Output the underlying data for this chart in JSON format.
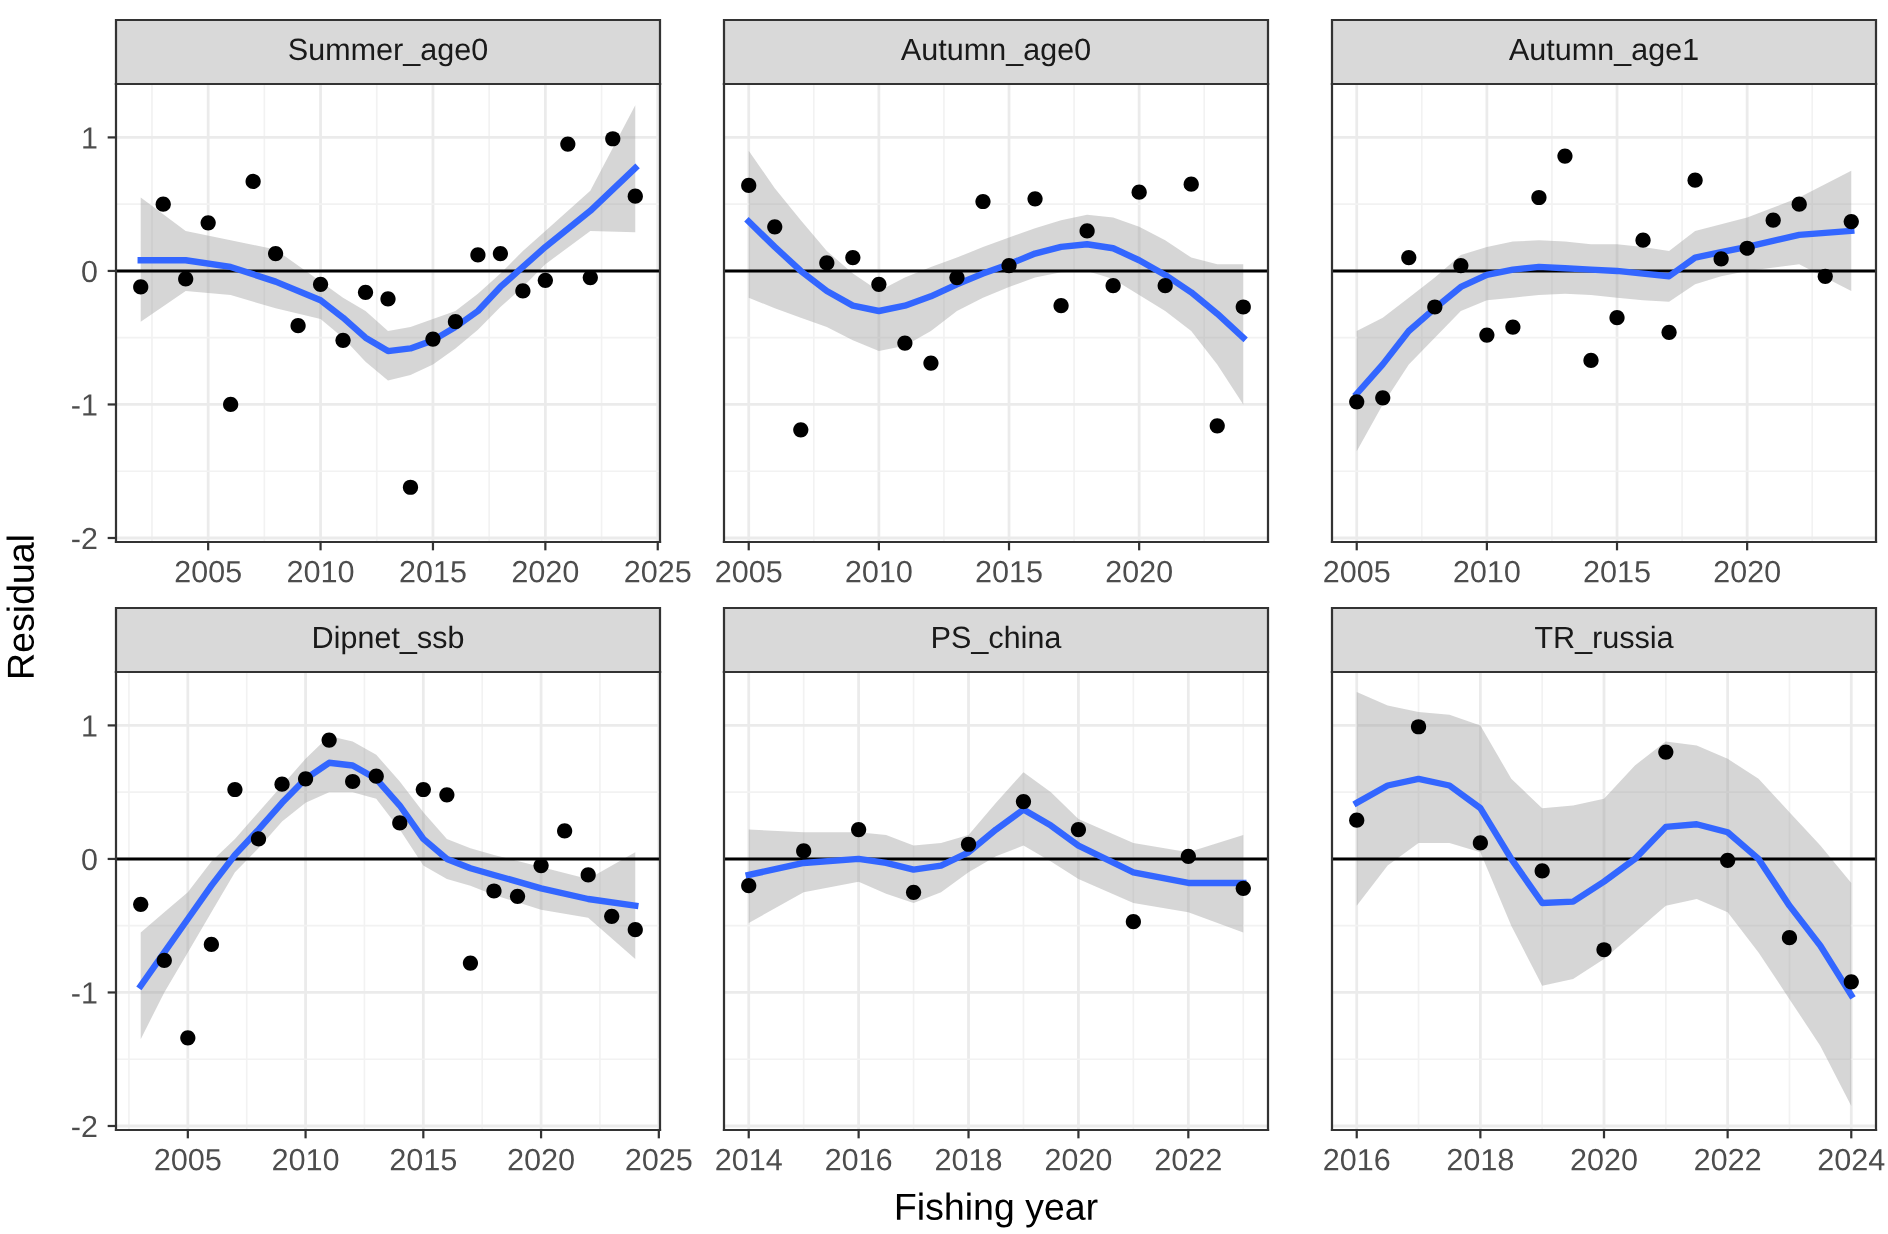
{
  "chart_data": [
    {
      "type": "scatter",
      "title": "Summer_age0",
      "ylabel": "Residual",
      "xlim": [
        2000.9,
        2025.1
      ],
      "xticks": [
        2005,
        2010,
        2015,
        2020,
        2025
      ],
      "ylim": [
        -2.03,
        1.4
      ],
      "yticks": [
        -2,
        -1,
        0,
        1
      ],
      "grid": true,
      "ref_lines": [
        {
          "axis": "y",
          "value": 0,
          "color": "#000000"
        }
      ],
      "series": [
        {
          "color": "#000000",
          "marker": "circle",
          "x": [
            2002,
            2003,
            2004,
            2005,
            2006,
            2007,
            2008,
            2009,
            2010,
            2011,
            2012,
            2013,
            2014,
            2015,
            2016,
            2017,
            2018,
            2019,
            2020,
            2021,
            2022,
            2023,
            2024
          ],
          "values": [
            -0.12,
            0.5,
            -0.06,
            0.36,
            -1.0,
            0.67,
            0.13,
            -0.41,
            -0.1,
            -0.52,
            -0.16,
            -0.21,
            -1.62,
            -0.51,
            -0.38,
            0.12,
            0.13,
            -0.15,
            -0.07,
            0.95,
            -0.05,
            0.99,
            0.56
          ]
        },
        {
          "type": "line",
          "color": "#3366ff",
          "x": [
            2002,
            2004,
            2006,
            2008,
            2010,
            2011,
            2012,
            2013,
            2014,
            2015,
            2016,
            2017,
            2018,
            2019,
            2020,
            2022,
            2024
          ],
          "values": [
            0.08,
            0.08,
            0.03,
            -0.08,
            -0.22,
            -0.35,
            -0.5,
            -0.6,
            -0.58,
            -0.52,
            -0.42,
            -0.3,
            -0.12,
            0.03,
            0.18,
            0.45,
            0.77
          ],
          "lower": [
            -0.38,
            -0.15,
            -0.18,
            -0.28,
            -0.36,
            -0.5,
            -0.68,
            -0.82,
            -0.78,
            -0.7,
            -0.58,
            -0.44,
            -0.27,
            -0.12,
            0.05,
            0.3,
            0.29
          ],
          "upper": [
            0.55,
            0.3,
            0.23,
            0.16,
            -0.08,
            -0.2,
            -0.3,
            -0.45,
            -0.42,
            -0.36,
            -0.3,
            -0.17,
            -0.02,
            0.15,
            0.3,
            0.6,
            1.24
          ]
        }
      ]
    },
    {
      "type": "scatter",
      "title": "Autumn_age0",
      "xlim": [
        2004.05,
        2024.95
      ],
      "xticks": [
        2005,
        2010,
        2015,
        2020
      ],
      "ylim": [
        -2.03,
        1.4
      ],
      "yticks": [
        -2,
        -1,
        0,
        1
      ],
      "grid": true,
      "tick_labels": "x",
      "ref_lines": [
        {
          "axis": "y",
          "value": 0,
          "color": "#000000"
        }
      ],
      "series": [
        {
          "color": "#000000",
          "marker": "circle",
          "x": [
            2005,
            2006,
            2007,
            2008,
            2009,
            2010,
            2011,
            2012,
            2013,
            2014,
            2015,
            2016,
            2017,
            2018,
            2019,
            2020,
            2021,
            2022,
            2023,
            2024
          ],
          "values": [
            0.64,
            0.33,
            -1.19,
            0.06,
            0.1,
            -0.1,
            -0.54,
            -0.69,
            -0.05,
            0.52,
            0.04,
            0.54,
            -0.26,
            0.3,
            -0.11,
            0.59,
            -0.11,
            0.65,
            -1.16,
            -0.27
          ]
        },
        {
          "type": "line",
          "color": "#3366ff",
          "x": [
            2005,
            2006,
            2007,
            2008,
            2009,
            2010,
            2011,
            2012,
            2013,
            2014,
            2015,
            2016,
            2017,
            2018,
            2019,
            2020,
            2021,
            2022,
            2023,
            2024
          ],
          "values": [
            0.37,
            0.18,
            0.0,
            -0.15,
            -0.26,
            -0.3,
            -0.26,
            -0.19,
            -0.1,
            -0.02,
            0.05,
            0.13,
            0.18,
            0.2,
            0.17,
            0.08,
            -0.03,
            -0.16,
            -0.32,
            -0.5
          ],
          "lower": [
            -0.2,
            -0.28,
            -0.35,
            -0.42,
            -0.52,
            -0.6,
            -0.56,
            -0.45,
            -0.3,
            -0.2,
            -0.12,
            -0.05,
            -0.01,
            0.0,
            -0.06,
            -0.18,
            -0.3,
            -0.45,
            -0.7,
            -1.0
          ],
          "upper": [
            0.9,
            0.62,
            0.38,
            0.15,
            -0.02,
            -0.15,
            -0.05,
            0.03,
            0.1,
            0.18,
            0.25,
            0.32,
            0.38,
            0.42,
            0.4,
            0.33,
            0.23,
            0.1,
            0.05,
            0.05
          ]
        }
      ]
    },
    {
      "type": "scatter",
      "title": "Autumn_age1",
      "xlim": [
        2004.05,
        2024.95
      ],
      "xticks": [
        2005,
        2010,
        2015,
        2020
      ],
      "ylim": [
        -2.03,
        1.4
      ],
      "yticks": [
        -2,
        -1,
        0,
        1
      ],
      "grid": true,
      "tick_labels": "x",
      "ref_lines": [
        {
          "axis": "y",
          "value": 0,
          "color": "#000000"
        }
      ],
      "series": [
        {
          "color": "#000000",
          "marker": "circle",
          "x": [
            2005,
            2006,
            2007,
            2008,
            2009,
            2010,
            2011,
            2012,
            2013,
            2014,
            2015,
            2016,
            2017,
            2018,
            2019,
            2020,
            2021,
            2022,
            2023,
            2024
          ],
          "values": [
            -0.98,
            -0.95,
            0.1,
            -0.27,
            0.04,
            -0.48,
            -0.42,
            0.55,
            0.86,
            -0.67,
            -0.35,
            0.23,
            -0.46,
            0.68,
            0.09,
            0.17,
            0.38,
            0.5,
            -0.04,
            0.37
          ]
        },
        {
          "type": "line",
          "color": "#3366ff",
          "x": [
            2005,
            2006,
            2007,
            2008,
            2009,
            2010,
            2011,
            2012,
            2013,
            2014,
            2015,
            2016,
            2017,
            2018,
            2019,
            2020,
            2022,
            2024
          ],
          "values": [
            -0.92,
            -0.7,
            -0.45,
            -0.28,
            -0.12,
            -0.03,
            0.01,
            0.03,
            0.02,
            0.01,
            0.0,
            -0.02,
            -0.04,
            0.1,
            0.14,
            0.18,
            0.27,
            0.3
          ],
          "lower": [
            -1.35,
            -1.0,
            -0.7,
            -0.5,
            -0.3,
            -0.22,
            -0.2,
            -0.18,
            -0.17,
            -0.18,
            -0.2,
            -0.22,
            -0.23,
            -0.1,
            -0.04,
            0.0,
            0.05,
            -0.15
          ],
          "upper": [
            -0.45,
            -0.35,
            -0.2,
            -0.05,
            0.12,
            0.18,
            0.22,
            0.23,
            0.22,
            0.2,
            0.2,
            0.18,
            0.15,
            0.3,
            0.35,
            0.4,
            0.55,
            0.75
          ]
        }
      ]
    },
    {
      "type": "scatter",
      "title": "Dipnet_ssb",
      "xlim": [
        2001.95,
        2025.05
      ],
      "xticks": [
        2005,
        2010,
        2015,
        2020,
        2025
      ],
      "ylim": [
        -2.03,
        1.4
      ],
      "yticks": [
        -2,
        -1,
        0,
        1
      ],
      "grid": true,
      "ref_lines": [
        {
          "axis": "y",
          "value": 0,
          "color": "#000000"
        }
      ],
      "series": [
        {
          "color": "#000000",
          "marker": "circle",
          "x": [
            2003,
            2004,
            2005,
            2006,
            2007,
            2008,
            2009,
            2010,
            2011,
            2012,
            2013,
            2014,
            2015,
            2016,
            2017,
            2018,
            2019,
            2020,
            2021,
            2022,
            2023,
            2024
          ],
          "values": [
            -0.34,
            -0.76,
            -1.34,
            -0.64,
            0.52,
            0.15,
            0.56,
            0.6,
            0.89,
            0.58,
            0.62,
            0.27,
            0.52,
            0.48,
            -0.78,
            -0.24,
            -0.28,
            -0.05,
            0.21,
            -0.12,
            -0.43,
            -0.53
          ]
        },
        {
          "type": "line",
          "color": "#3366ff",
          "x": [
            2003,
            2004,
            2005,
            2006,
            2007,
            2008,
            2009,
            2010,
            2011,
            2012,
            2013,
            2014,
            2015,
            2016,
            2017,
            2018,
            2020,
            2022,
            2024
          ],
          "values": [
            -0.95,
            -0.7,
            -0.45,
            -0.2,
            0.03,
            0.22,
            0.42,
            0.6,
            0.72,
            0.7,
            0.6,
            0.4,
            0.15,
            0.0,
            -0.07,
            -0.12,
            -0.22,
            -0.3,
            -0.35
          ],
          "lower": [
            -1.35,
            -1.0,
            -0.7,
            -0.4,
            -0.1,
            0.08,
            0.28,
            0.42,
            0.5,
            0.5,
            0.45,
            0.22,
            -0.05,
            -0.15,
            -0.2,
            -0.27,
            -0.38,
            -0.44,
            -0.75
          ],
          "upper": [
            -0.55,
            -0.4,
            -0.25,
            -0.02,
            0.15,
            0.35,
            0.55,
            0.75,
            0.92,
            0.88,
            0.78,
            0.58,
            0.35,
            0.15,
            0.08,
            0.03,
            -0.06,
            -0.15,
            0.05
          ]
        }
      ]
    },
    {
      "type": "scatter",
      "title": "PS_china",
      "xlabel": "Fishing year",
      "xlim": [
        2013.55,
        2023.45
      ],
      "xticks": [
        2014,
        2016,
        2018,
        2020,
        2022
      ],
      "ylim": [
        -2.03,
        1.4
      ],
      "yticks": [
        -2,
        -1,
        0,
        1
      ],
      "grid": true,
      "tick_labels": "x",
      "ref_lines": [
        {
          "axis": "y",
          "value": 0,
          "color": "#000000"
        }
      ],
      "series": [
        {
          "color": "#000000",
          "marker": "circle",
          "x": [
            2014,
            2015,
            2016,
            2017,
            2018,
            2019,
            2020,
            2021,
            2022,
            2023
          ],
          "values": [
            -0.2,
            0.06,
            0.22,
            -0.25,
            0.11,
            0.43,
            0.22,
            -0.47,
            0.02,
            -0.22
          ]
        },
        {
          "type": "line",
          "color": "#3366ff",
          "x": [
            2014,
            2015,
            2016,
            2016.5,
            2017,
            2017.5,
            2018,
            2018.5,
            2019,
            2019.5,
            2020,
            2021,
            2022,
            2023
          ],
          "values": [
            -0.12,
            -0.03,
            0.0,
            -0.03,
            -0.08,
            -0.05,
            0.05,
            0.22,
            0.37,
            0.25,
            0.1,
            -0.1,
            -0.18,
            -0.18
          ],
          "lower": [
            -0.48,
            -0.25,
            -0.17,
            -0.26,
            -0.33,
            -0.25,
            -0.1,
            0.02,
            0.1,
            -0.02,
            -0.15,
            -0.33,
            -0.4,
            -0.55
          ],
          "upper": [
            0.22,
            0.2,
            0.2,
            0.18,
            0.1,
            0.12,
            0.18,
            0.42,
            0.65,
            0.5,
            0.3,
            0.12,
            0.05,
            0.18
          ]
        }
      ]
    },
    {
      "type": "scatter",
      "title": "TR_russia",
      "xlim": [
        2015.6,
        2024.4
      ],
      "xticks": [
        2016,
        2018,
        2020,
        2022,
        2024
      ],
      "ylim": [
        -2.03,
        1.4
      ],
      "yticks": [
        -2,
        -1,
        0,
        1
      ],
      "grid": true,
      "tick_labels": "x",
      "ref_lines": [
        {
          "axis": "y",
          "value": 0,
          "color": "#000000"
        }
      ],
      "series": [
        {
          "color": "#000000",
          "marker": "circle",
          "x": [
            2016,
            2017,
            2018,
            2019,
            2020,
            2021,
            2022,
            2023,
            2024
          ],
          "values": [
            0.29,
            0.99,
            0.12,
            -0.09,
            -0.68,
            0.8,
            -0.01,
            -0.59,
            -0.92
          ]
        },
        {
          "type": "line",
          "color": "#3366ff",
          "x": [
            2016,
            2016.5,
            2017,
            2017.5,
            2018,
            2018.5,
            2019,
            2019.5,
            2020,
            2020.5,
            2021,
            2021.5,
            2022,
            2022.5,
            2023,
            2023.5,
            2024
          ],
          "values": [
            0.42,
            0.55,
            0.6,
            0.55,
            0.38,
            0.0,
            -0.33,
            -0.32,
            -0.17,
            0.0,
            0.24,
            0.26,
            0.2,
            0.0,
            -0.35,
            -0.65,
            -1.02
          ],
          "lower": [
            -0.35,
            -0.05,
            0.12,
            0.12,
            0.05,
            -0.5,
            -0.95,
            -0.9,
            -0.75,
            -0.55,
            -0.35,
            -0.3,
            -0.4,
            -0.7,
            -1.05,
            -1.4,
            -1.85
          ],
          "upper": [
            1.25,
            1.15,
            1.1,
            1.08,
            1.0,
            0.6,
            0.38,
            0.4,
            0.45,
            0.7,
            0.88,
            0.85,
            0.75,
            0.6,
            0.35,
            0.1,
            -0.18
          ]
        }
      ]
    }
  ]
}
